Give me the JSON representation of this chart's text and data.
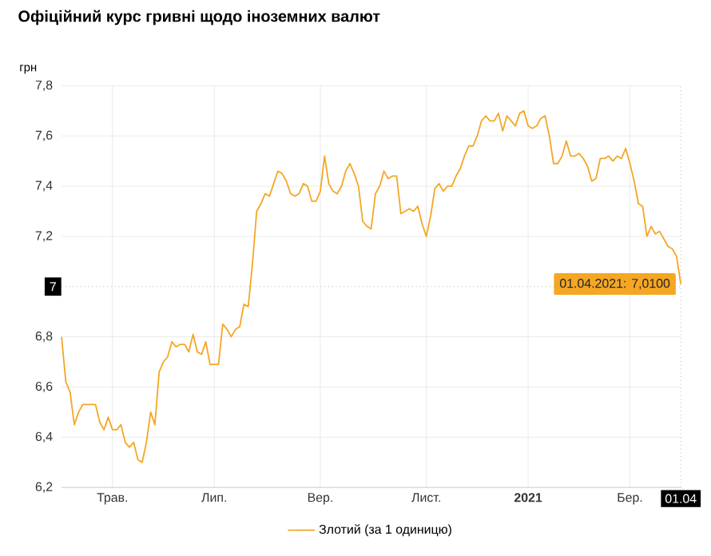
{
  "chart_data": {
    "type": "line",
    "title": "Офіційний курс гривні щодо іноземних валют",
    "ylabel": "грн",
    "categories": [
      null,
      null,
      null,
      null,
      null,
      null,
      null,
      null,
      null,
      null,
      null,
      null,
      "Трав.",
      null,
      null,
      null,
      null,
      null,
      null,
      null,
      null,
      null,
      null,
      null,
      null,
      null,
      null,
      null,
      null,
      null,
      null,
      null,
      null,
      null,
      null,
      null,
      "Лип.",
      null,
      null,
      null,
      null,
      null,
      null,
      null,
      null,
      null,
      null,
      null,
      null,
      null,
      null,
      null,
      null,
      null,
      null,
      null,
      null,
      null,
      null,
      null,
      null,
      "Вер.",
      null,
      null,
      null,
      null,
      null,
      null,
      null,
      null,
      null,
      null,
      null,
      null,
      null,
      null,
      null,
      null,
      null,
      null,
      null,
      null,
      null,
      null,
      null,
      null,
      "Лист.",
      null,
      null,
      null,
      null,
      null,
      null,
      null,
      null,
      null,
      null,
      null,
      null,
      null,
      null,
      null,
      null,
      null,
      null,
      null,
      null,
      null,
      null,
      null,
      "**2021**",
      null,
      null,
      null,
      null,
      null,
      null,
      null,
      null,
      null,
      null,
      null,
      null,
      null,
      null,
      null,
      null,
      null,
      null,
      null,
      null,
      null,
      null,
      null,
      "Бер.",
      null,
      null,
      null,
      null,
      null,
      null,
      null,
      null,
      null,
      null,
      null,
      "01.04"
    ],
    "series": [
      {
        "name": "Злотий (за 1 одиницю)",
        "color": "#f5a623",
        "values": [
          6.8,
          6.62,
          6.58,
          6.45,
          6.5,
          6.53,
          6.53,
          6.53,
          6.53,
          6.46,
          6.43,
          6.48,
          6.43,
          6.43,
          6.45,
          6.38,
          6.36,
          6.38,
          6.31,
          6.3,
          6.38,
          6.5,
          6.45,
          6.66,
          6.7,
          6.72,
          6.78,
          6.76,
          6.77,
          6.77,
          6.74,
          6.81,
          6.74,
          6.73,
          6.78,
          6.69,
          6.69,
          6.69,
          6.85,
          6.83,
          6.8,
          6.83,
          6.84,
          6.93,
          6.92,
          7.09,
          7.3,
          7.33,
          7.37,
          7.36,
          7.41,
          7.46,
          7.45,
          7.42,
          7.37,
          7.36,
          7.37,
          7.41,
          7.4,
          7.34,
          7.34,
          7.38,
          7.52,
          7.41,
          7.38,
          7.37,
          7.4,
          7.46,
          7.49,
          7.45,
          7.4,
          7.26,
          7.24,
          7.23,
          7.37,
          7.4,
          7.46,
          7.43,
          7.44,
          7.44,
          7.29,
          7.3,
          7.31,
          7.3,
          7.32,
          7.25,
          7.2,
          7.28,
          7.39,
          7.41,
          7.38,
          7.4,
          7.4,
          7.44,
          7.47,
          7.52,
          7.56,
          7.56,
          7.6,
          7.66,
          7.68,
          7.66,
          7.66,
          7.69,
          7.62,
          7.68,
          7.66,
          7.64,
          7.69,
          7.7,
          7.64,
          7.63,
          7.64,
          7.67,
          7.68,
          7.6,
          7.49,
          7.49,
          7.52,
          7.58,
          7.52,
          7.52,
          7.53,
          7.51,
          7.48,
          7.42,
          7.43,
          7.51,
          7.51,
          7.52,
          7.5,
          7.52,
          7.51,
          7.55,
          7.49,
          7.42,
          7.33,
          7.32,
          7.2,
          7.24,
          7.21,
          7.22,
          7.19,
          7.16,
          7.15,
          7.12,
          7.01
        ]
      }
    ],
    "ylim": [
      6.2,
      7.8
    ],
    "yticks": [
      {
        "value": 6.2,
        "label": "6,2"
      },
      {
        "value": 6.4,
        "label": "6,4"
      },
      {
        "value": 6.6,
        "label": "6,6"
      },
      {
        "value": 6.8,
        "label": "6,8"
      },
      {
        "value": 7.2,
        "label": "7,2"
      },
      {
        "value": 7.4,
        "label": "7,4"
      },
      {
        "value": 7.6,
        "label": "7,6"
      },
      {
        "value": 7.8,
        "label": "7,8"
      }
    ],
    "ref_lines": [
      {
        "axis": "y",
        "value": 7,
        "label": "7",
        "line_style": "dotted"
      },
      {
        "axis": "x",
        "value": "01.04",
        "line_style": "dotted"
      }
    ],
    "annotations": [
      {
        "text": "01.04.2021: 7,0100",
        "x": "01.04",
        "y": 7.01
      }
    ],
    "grid": true,
    "legend": "bottom",
    "marker": "none",
    "line_style": "solid"
  }
}
